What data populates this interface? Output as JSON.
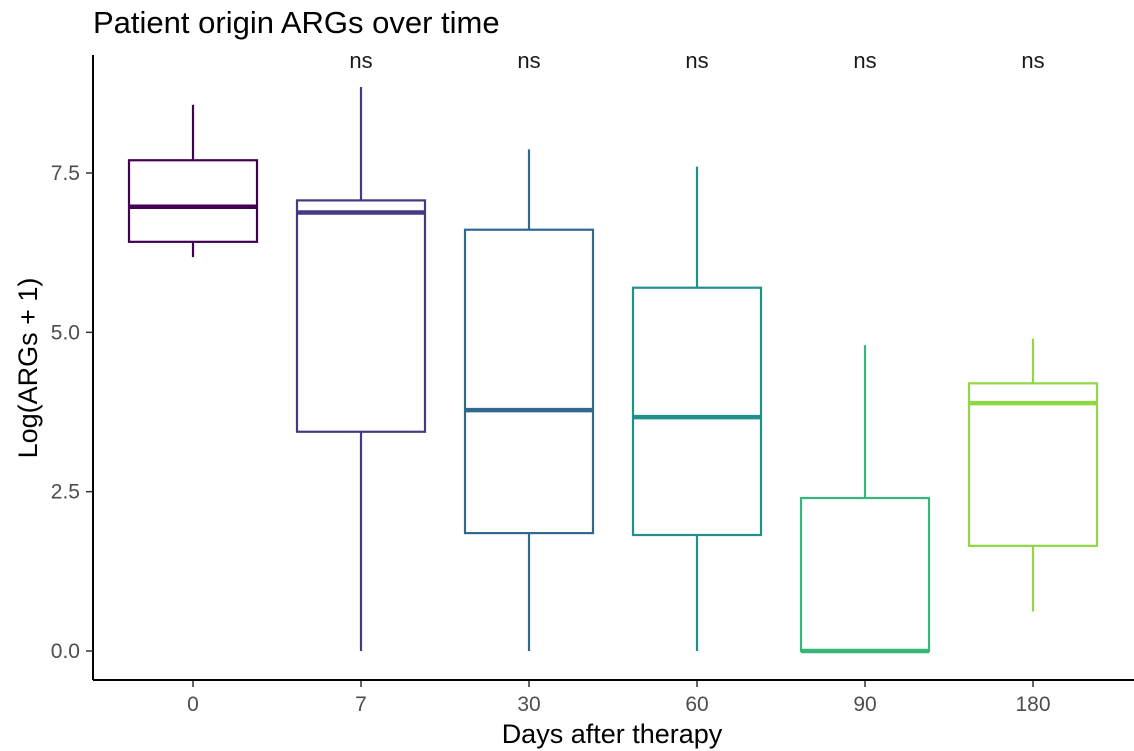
{
  "chart_data": {
    "type": "box",
    "title": "Patient origin ARGs over time",
    "xlabel": "Days after therapy",
    "ylabel": "Log(ARGs + 1)",
    "ylim": [
      -0.45,
      9.1
    ],
    "yticks": [
      0.0,
      2.5,
      5.0,
      7.5
    ],
    "ytick_labels": [
      "0.0",
      "2.5",
      "5.0",
      "7.5"
    ],
    "grid": false,
    "legend": "none",
    "categories": [
      "0",
      "7",
      "30",
      "60",
      "90",
      "180"
    ],
    "boxes": [
      {
        "category": "0",
        "min": 6.18,
        "q1": 6.42,
        "median": 6.97,
        "q3": 7.7,
        "max": 8.57,
        "color": "#440154",
        "annotation": ""
      },
      {
        "category": "7",
        "min": 0.0,
        "q1": 3.44,
        "median": 6.88,
        "q3": 7.07,
        "max": 8.85,
        "color": "#443A83",
        "annotation": "ns"
      },
      {
        "category": "30",
        "min": 0.0,
        "q1": 1.85,
        "median": 3.78,
        "q3": 6.61,
        "max": 7.87,
        "color": "#31688E",
        "annotation": "ns"
      },
      {
        "category": "60",
        "min": 0.0,
        "q1": 1.82,
        "median": 3.67,
        "q3": 5.7,
        "max": 7.6,
        "color": "#21908C",
        "annotation": "ns"
      },
      {
        "category": "90",
        "min": 0.0,
        "q1": 0.0,
        "median": 0.0,
        "q3": 2.4,
        "max": 4.8,
        "color": "#35B779",
        "annotation": "ns"
      },
      {
        "category": "180",
        "min": 0.62,
        "q1": 1.65,
        "median": 3.89,
        "q3": 4.2,
        "max": 4.9,
        "color": "#8FD744",
        "annotation": "ns"
      }
    ]
  }
}
